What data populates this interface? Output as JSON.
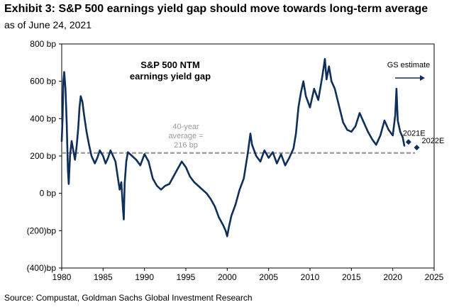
{
  "header": {
    "title": "Exhibit 3: S&P 500 earnings yield gap should move towards long-term average",
    "subtitle": "as of June 24, 2021"
  },
  "source": "Source: Compustat, Goldman Sachs Global Investment Research",
  "chart_data": {
    "type": "line",
    "title": "S&P 500 NTM earnings yield gap",
    "title_lines": [
      "S&P 500 NTM",
      "earnings yield gap"
    ],
    "xlabel": "",
    "ylabel": "",
    "xlim": [
      1980,
      2025
    ],
    "ylim": [
      -400,
      800
    ],
    "x_ticks": [
      1980,
      1985,
      1990,
      1995,
      2000,
      2005,
      2010,
      2015,
      2020,
      2025
    ],
    "y_ticks": [
      {
        "value": 800,
        "label": "800 bp"
      },
      {
        "value": 600,
        "label": "600 bp"
      },
      {
        "value": 400,
        "label": "400 bp"
      },
      {
        "value": 200,
        "label": "200 bp"
      },
      {
        "value": 0,
        "label": "0 bp"
      },
      {
        "value": -200,
        "label": "(200)bp"
      },
      {
        "value": -400,
        "label": "(400)bp"
      }
    ],
    "grid": false,
    "line_color": "#0e2f5a",
    "average": {
      "value": 216,
      "label_lines": [
        "40-year",
        "average =",
        "216 bp"
      ],
      "color": "#9b9b9b"
    },
    "estimates": [
      {
        "label": "2021E",
        "x": 2021.9,
        "y": 275
      },
      {
        "label": "2022E",
        "x": 2022.9,
        "y": 245
      }
    ],
    "gs_estimate_label": "GS estimate",
    "series": [
      {
        "values": [
          [
            1980.0,
            280
          ],
          [
            1980.1,
            400
          ],
          [
            1980.2,
            600
          ],
          [
            1980.3,
            650
          ],
          [
            1980.45,
            560
          ],
          [
            1980.6,
            380
          ],
          [
            1980.75,
            120
          ],
          [
            1980.85,
            50
          ],
          [
            1981.0,
            200
          ],
          [
            1981.2,
            280
          ],
          [
            1981.4,
            230
          ],
          [
            1981.6,
            180
          ],
          [
            1981.8,
            250
          ],
          [
            1982.0,
            350
          ],
          [
            1982.15,
            460
          ],
          [
            1982.3,
            520
          ],
          [
            1982.5,
            490
          ],
          [
            1982.7,
            420
          ],
          [
            1983.0,
            330
          ],
          [
            1983.3,
            260
          ],
          [
            1983.6,
            200
          ],
          [
            1984.0,
            160
          ],
          [
            1984.3,
            190
          ],
          [
            1984.6,
            230
          ],
          [
            1985.0,
            200
          ],
          [
            1985.3,
            160
          ],
          [
            1985.6,
            190
          ],
          [
            1985.9,
            230
          ],
          [
            1986.2,
            200
          ],
          [
            1986.5,
            170
          ],
          [
            1986.8,
            80
          ],
          [
            1987.0,
            20
          ],
          [
            1987.2,
            60
          ],
          [
            1987.4,
            -80
          ],
          [
            1987.5,
            -140
          ],
          [
            1987.6,
            50
          ],
          [
            1987.8,
            170
          ],
          [
            1988.0,
            220
          ],
          [
            1988.5,
            200
          ],
          [
            1989.0,
            180
          ],
          [
            1989.5,
            150
          ],
          [
            1990.0,
            210
          ],
          [
            1990.5,
            170
          ],
          [
            1991.0,
            80
          ],
          [
            1991.5,
            40
          ],
          [
            1992.0,
            20
          ],
          [
            1992.5,
            40
          ],
          [
            1993.0,
            50
          ],
          [
            1993.5,
            90
          ],
          [
            1994.0,
            130
          ],
          [
            1994.5,
            170
          ],
          [
            1995.0,
            140
          ],
          [
            1995.5,
            90
          ],
          [
            1996.0,
            60
          ],
          [
            1996.5,
            40
          ],
          [
            1997.0,
            20
          ],
          [
            1997.5,
            0
          ],
          [
            1998.0,
            -30
          ],
          [
            1998.5,
            -70
          ],
          [
            1999.0,
            -130
          ],
          [
            1999.5,
            -170
          ],
          [
            1999.8,
            -200
          ],
          [
            2000.0,
            -230
          ],
          [
            2000.2,
            -180
          ],
          [
            2000.5,
            -120
          ],
          [
            2001.0,
            -60
          ],
          [
            2001.5,
            20
          ],
          [
            2002.0,
            80
          ],
          [
            2002.5,
            220
          ],
          [
            2002.8,
            320
          ],
          [
            2003.0,
            260
          ],
          [
            2003.5,
            200
          ],
          [
            2004.0,
            170
          ],
          [
            2004.5,
            230
          ],
          [
            2005.0,
            190
          ],
          [
            2005.5,
            220
          ],
          [
            2006.0,
            160
          ],
          [
            2006.5,
            210
          ],
          [
            2007.0,
            150
          ],
          [
            2007.5,
            190
          ],
          [
            2008.0,
            240
          ],
          [
            2008.3,
            320
          ],
          [
            2008.6,
            460
          ],
          [
            2008.9,
            540
          ],
          [
            2009.2,
            600
          ],
          [
            2009.5,
            520
          ],
          [
            2010.0,
            460
          ],
          [
            2010.5,
            560
          ],
          [
            2011.0,
            500
          ],
          [
            2011.5,
            630
          ],
          [
            2011.8,
            720
          ],
          [
            2012.0,
            610
          ],
          [
            2012.3,
            680
          ],
          [
            2012.6,
            600
          ],
          [
            2013.0,
            560
          ],
          [
            2013.5,
            470
          ],
          [
            2014.0,
            380
          ],
          [
            2014.5,
            340
          ],
          [
            2015.0,
            330
          ],
          [
            2015.5,
            360
          ],
          [
            2016.0,
            430
          ],
          [
            2016.5,
            380
          ],
          [
            2017.0,
            330
          ],
          [
            2017.5,
            290
          ],
          [
            2018.0,
            260
          ],
          [
            2018.5,
            310
          ],
          [
            2019.0,
            390
          ],
          [
            2019.5,
            340
          ],
          [
            2020.0,
            310
          ],
          [
            2020.3,
            420
          ],
          [
            2020.45,
            560
          ],
          [
            2020.6,
            390
          ],
          [
            2020.9,
            330
          ],
          [
            2021.2,
            300
          ],
          [
            2021.4,
            255
          ]
        ]
      }
    ]
  }
}
